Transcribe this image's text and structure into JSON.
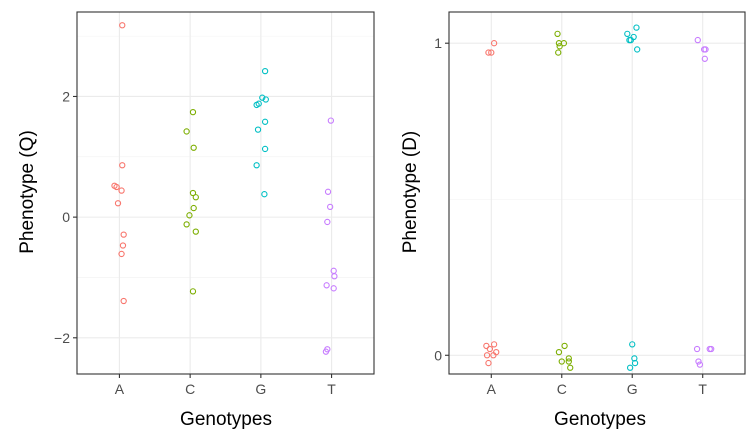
{
  "chart_data": [
    {
      "type": "scatter",
      "xlabel": "Genotypes",
      "ylabel": "Phenotype (Q)",
      "categories": [
        "A",
        "C",
        "G",
        "T"
      ],
      "ylim": [
        -2.6,
        3.4
      ],
      "yticks": [
        -2,
        0,
        2
      ],
      "ytick_labels": [
        "−2",
        "0",
        "2"
      ],
      "grid": true,
      "series": [
        {
          "category": "A",
          "color": "#F8766D",
          "points": [
            {
              "x": -0.07,
              "y": 0.52
            },
            {
              "x": -0.04,
              "y": 0.5
            },
            {
              "x": 0.03,
              "y": 0.44
            },
            {
              "x": 0.04,
              "y": 3.18
            },
            {
              "x": 0.04,
              "y": 0.86
            },
            {
              "x": -0.02,
              "y": 0.23
            },
            {
              "x": 0.06,
              "y": -0.29
            },
            {
              "x": 0.05,
              "y": -0.47
            },
            {
              "x": 0.03,
              "y": -0.61
            },
            {
              "x": 0.06,
              "y": -1.39
            }
          ]
        },
        {
          "category": "C",
          "color": "#7CAE00",
          "points": [
            {
              "x": 0.04,
              "y": 1.74
            },
            {
              "x": -0.05,
              "y": 1.42
            },
            {
              "x": 0.05,
              "y": 1.15
            },
            {
              "x": 0.04,
              "y": 0.4
            },
            {
              "x": 0.08,
              "y": 0.33
            },
            {
              "x": 0.05,
              "y": 0.15
            },
            {
              "x": -0.01,
              "y": 0.03
            },
            {
              "x": -0.05,
              "y": -0.12
            },
            {
              "x": 0.08,
              "y": -0.24
            },
            {
              "x": 0.04,
              "y": -1.23
            }
          ]
        },
        {
          "category": "G",
          "color": "#00BFC4",
          "points": [
            {
              "x": 0.06,
              "y": 2.42
            },
            {
              "x": 0.02,
              "y": 1.98
            },
            {
              "x": 0.07,
              "y": 1.95
            },
            {
              "x": -0.03,
              "y": 1.88
            },
            {
              "x": -0.06,
              "y": 1.86
            },
            {
              "x": 0.06,
              "y": 1.58
            },
            {
              "x": -0.04,
              "y": 1.45
            },
            {
              "x": 0.06,
              "y": 1.13
            },
            {
              "x": -0.06,
              "y": 0.86
            },
            {
              "x": 0.05,
              "y": 0.38
            }
          ]
        },
        {
          "category": "T",
          "color": "#C77CFF",
          "points": [
            {
              "x": -0.01,
              "y": 1.6
            },
            {
              "x": -0.05,
              "y": 0.42
            },
            {
              "x": -0.02,
              "y": 0.17
            },
            {
              "x": -0.06,
              "y": -0.08
            },
            {
              "x": 0.03,
              "y": -0.89
            },
            {
              "x": 0.04,
              "y": -0.98
            },
            {
              "x": -0.07,
              "y": -1.13
            },
            {
              "x": 0.03,
              "y": -1.18
            },
            {
              "x": -0.06,
              "y": -2.19
            },
            {
              "x": -0.08,
              "y": -2.23
            }
          ]
        }
      ]
    },
    {
      "type": "scatter",
      "xlabel": "Genotypes",
      "ylabel": "Phenotype (D)",
      "categories": [
        "A",
        "C",
        "G",
        "T"
      ],
      "ylim": [
        -0.06,
        1.1
      ],
      "yticks": [
        0,
        1
      ],
      "ytick_labels": [
        "0",
        "1"
      ],
      "grid": true,
      "series": [
        {
          "category": "A",
          "color": "#F8766D",
          "points": [
            {
              "x": -0.04,
              "y": 0.97
            },
            {
              "x": 0.0,
              "y": 0.97
            },
            {
              "x": 0.04,
              "y": 1.0
            },
            {
              "x": -0.07,
              "y": 0.03
            },
            {
              "x": 0.04,
              "y": 0.035
            },
            {
              "x": -0.02,
              "y": 0.02
            },
            {
              "x": 0.07,
              "y": 0.01
            },
            {
              "x": 0.03,
              "y": 0.0
            },
            {
              "x": -0.06,
              "y": 0.0
            },
            {
              "x": -0.04,
              "y": -0.025
            }
          ]
        },
        {
          "category": "C",
          "color": "#7CAE00",
          "points": [
            {
              "x": -0.06,
              "y": 1.03
            },
            {
              "x": -0.04,
              "y": 1.0
            },
            {
              "x": 0.03,
              "y": 1.0
            },
            {
              "x": -0.03,
              "y": 0.99
            },
            {
              "x": -0.05,
              "y": 0.97
            },
            {
              "x": 0.04,
              "y": 0.03
            },
            {
              "x": -0.04,
              "y": 0.01
            },
            {
              "x": 0.1,
              "y": -0.01
            },
            {
              "x": 0.1,
              "y": -0.02
            },
            {
              "x": 0.0,
              "y": -0.02
            },
            {
              "x": 0.12,
              "y": -0.04
            }
          ]
        },
        {
          "category": "G",
          "color": "#00BFC4",
          "points": [
            {
              "x": -0.07,
              "y": 1.03
            },
            {
              "x": 0.02,
              "y": 1.02
            },
            {
              "x": -0.02,
              "y": 1.01
            },
            {
              "x": 0.06,
              "y": 1.05
            },
            {
              "x": -0.04,
              "y": 1.01
            },
            {
              "x": 0.07,
              "y": 0.98
            },
            {
              "x": 0.0,
              "y": 0.035
            },
            {
              "x": 0.03,
              "y": -0.01
            },
            {
              "x": 0.04,
              "y": -0.025
            },
            {
              "x": -0.03,
              "y": -0.04
            }
          ]
        },
        {
          "category": "T",
          "color": "#C77CFF",
          "points": [
            {
              "x": -0.07,
              "y": 1.01
            },
            {
              "x": 0.02,
              "y": 0.98
            },
            {
              "x": 0.04,
              "y": 0.98
            },
            {
              "x": 0.03,
              "y": 0.95
            },
            {
              "x": -0.08,
              "y": 0.02
            },
            {
              "x": 0.1,
              "y": 0.02
            },
            {
              "x": 0.12,
              "y": 0.02
            },
            {
              "x": -0.06,
              "y": -0.02
            },
            {
              "x": -0.04,
              "y": -0.03
            }
          ]
        }
      ]
    }
  ]
}
